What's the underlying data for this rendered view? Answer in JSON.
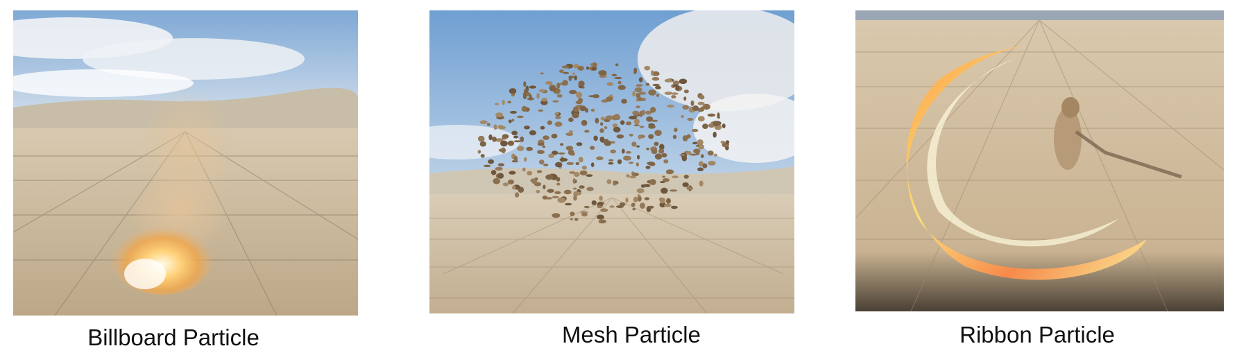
{
  "panels": [
    {
      "caption": "Billboard Particle"
    },
    {
      "caption": "Mesh Particle"
    },
    {
      "caption": "Ribbon Particle"
    }
  ]
}
